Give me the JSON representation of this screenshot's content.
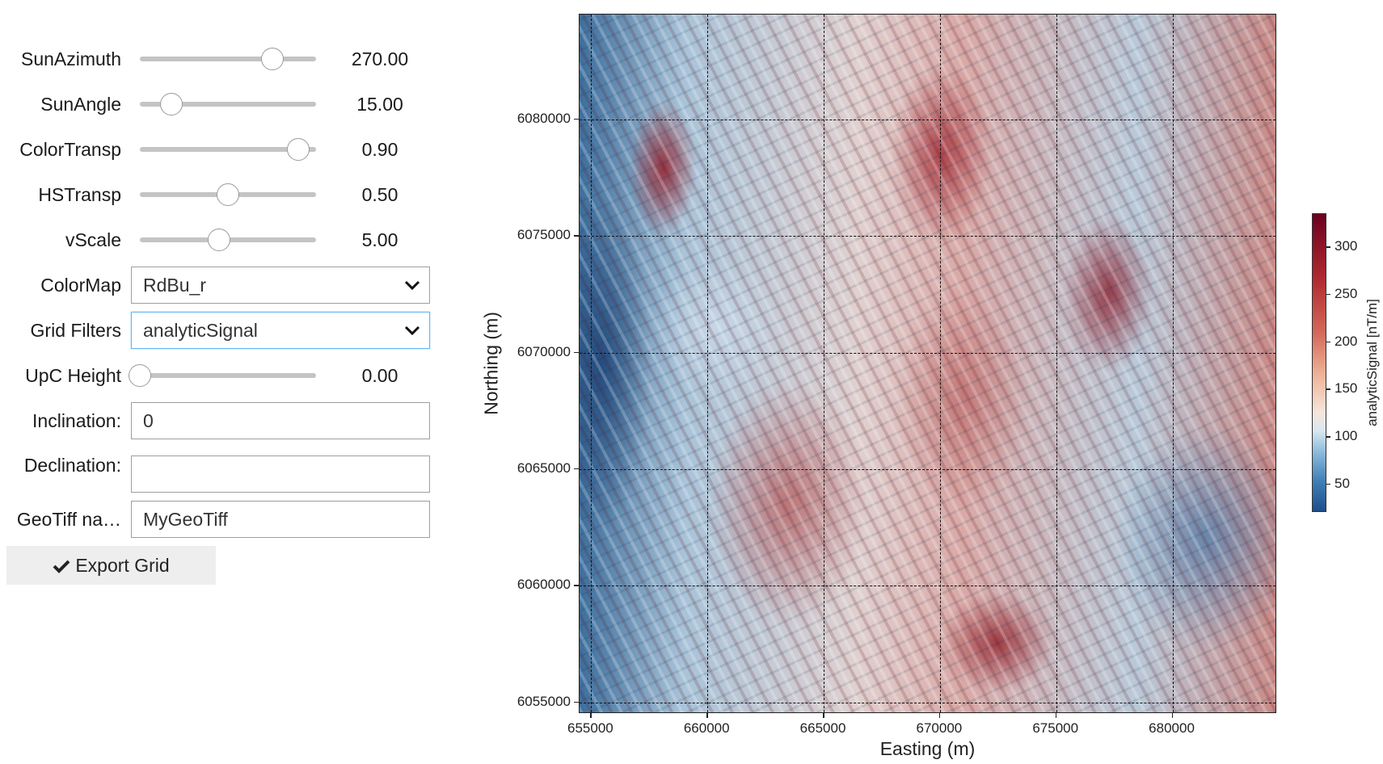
{
  "controls": {
    "sliders": [
      {
        "label": "SunAzimuth",
        "value": "270.00",
        "fraction": 0.75
      },
      {
        "label": "SunAngle",
        "value": "15.00",
        "fraction": 0.18
      },
      {
        "label": "ColorTransp",
        "value": "0.90",
        "fraction": 0.9
      },
      {
        "label": "HSTransp",
        "value": "0.50",
        "fraction": 0.5
      },
      {
        "label": "vScale",
        "value": "5.00",
        "fraction": 0.45
      }
    ],
    "colormap": {
      "label": "ColorMap",
      "value": "RdBu_r"
    },
    "grid_filters": {
      "label": "Grid Filters",
      "value": "analyticSignal"
    },
    "upc_height": {
      "label": "UpC Height",
      "value": "0.00",
      "fraction": 0.0
    },
    "inclination": {
      "label": "Inclination:",
      "value": "0"
    },
    "declination": {
      "label": "Declination:",
      "value": ""
    },
    "geotiff": {
      "label": "GeoTiff na…",
      "value": "MyGeoTiff"
    },
    "export_button": {
      "label": "Export Grid",
      "icon": "check-icon"
    }
  },
  "chart_data": {
    "type": "heatmap",
    "xlabel": "Easting (m)",
    "ylabel": "Northing (m)",
    "xlim": [
      654500,
      684500
    ],
    "ylim": [
      6054500,
      6084500
    ],
    "x_ticks": [
      "655000",
      "660000",
      "665000",
      "670000",
      "675000",
      "680000"
    ],
    "y_ticks": [
      "6055000",
      "6060000",
      "6065000",
      "6070000",
      "6075000",
      "6080000"
    ],
    "x_tick_values": [
      655000,
      660000,
      665000,
      670000,
      675000,
      680000
    ],
    "y_tick_values": [
      6055000,
      6060000,
      6065000,
      6070000,
      6075000,
      6080000
    ],
    "grid": true,
    "colormap": "RdBu_r",
    "colorbar": {
      "label": "analyticSignal [nT/m]",
      "range": [
        20,
        335
      ],
      "ticks": [
        "50",
        "100",
        "150",
        "200",
        "250",
        "300"
      ],
      "tick_values": [
        50,
        100,
        150,
        200,
        250,
        300
      ]
    }
  }
}
